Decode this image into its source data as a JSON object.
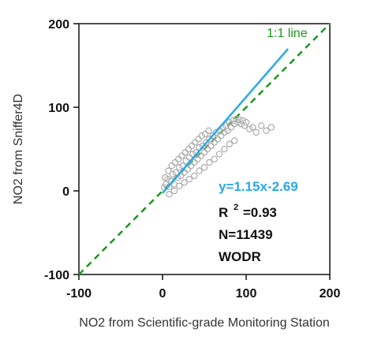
{
  "chart_data": {
    "type": "scatter",
    "title": "",
    "xlabel": "NO2 from Scientific-grade Monitoring Station",
    "ylabel": "NO2 from Sniffer4D",
    "xlim": [
      -100,
      200
    ],
    "ylim": [
      -100,
      200
    ],
    "x_ticks": [
      "-100",
      "0",
      "100",
      "200"
    ],
    "y_ticks": [
      "-100",
      "0",
      "100",
      "200"
    ],
    "grid": false,
    "series": [
      {
        "kind": "scatter",
        "marker": "open-circle",
        "color": "#a6a6a6",
        "points": [
          [
            2,
            4
          ],
          [
            4,
            8
          ],
          [
            6,
            14
          ],
          [
            8,
            5
          ],
          [
            10,
            12
          ],
          [
            12,
            20
          ],
          [
            14,
            8
          ],
          [
            16,
            22
          ],
          [
            18,
            16
          ],
          [
            20,
            28
          ],
          [
            22,
            18
          ],
          [
            24,
            30
          ],
          [
            26,
            22
          ],
          [
            28,
            36
          ],
          [
            30,
            26
          ],
          [
            32,
            40
          ],
          [
            34,
            30
          ],
          [
            36,
            44
          ],
          [
            38,
            34
          ],
          [
            40,
            46
          ],
          [
            42,
            38
          ],
          [
            44,
            52
          ],
          [
            46,
            42
          ],
          [
            48,
            54
          ],
          [
            50,
            46
          ],
          [
            52,
            58
          ],
          [
            54,
            50
          ],
          [
            56,
            62
          ],
          [
            58,
            54
          ],
          [
            60,
            66
          ],
          [
            62,
            58
          ],
          [
            64,
            70
          ],
          [
            66,
            62
          ],
          [
            68,
            72
          ],
          [
            70,
            66
          ],
          [
            72,
            76
          ],
          [
            74,
            70
          ],
          [
            76,
            78
          ],
          [
            78,
            72
          ],
          [
            80,
            82
          ],
          [
            82,
            76
          ],
          [
            84,
            84
          ],
          [
            86,
            80
          ],
          [
            88,
            86
          ],
          [
            90,
            82
          ],
          [
            92,
            85
          ],
          [
            94,
            80
          ],
          [
            96,
            84
          ],
          [
            98,
            78
          ],
          [
            100,
            82
          ],
          [
            104,
            74
          ],
          [
            108,
            76
          ],
          [
            112,
            70
          ],
          [
            118,
            78
          ],
          [
            124,
            72
          ],
          [
            130,
            76
          ],
          [
            3,
            16
          ],
          [
            7,
            24
          ],
          [
            11,
            30
          ],
          [
            15,
            34
          ],
          [
            19,
            38
          ],
          [
            23,
            42
          ],
          [
            27,
            46
          ],
          [
            31,
            50
          ],
          [
            35,
            54
          ],
          [
            39,
            58
          ],
          [
            43,
            62
          ],
          [
            47,
            66
          ],
          [
            51,
            68
          ],
          [
            55,
            72
          ],
          [
            8,
            -4
          ],
          [
            14,
            0
          ],
          [
            20,
            6
          ],
          [
            26,
            10
          ],
          [
            32,
            14
          ],
          [
            38,
            18
          ],
          [
            44,
            24
          ],
          [
            50,
            28
          ],
          [
            56,
            34
          ],
          [
            62,
            38
          ],
          [
            68,
            44
          ],
          [
            74,
            50
          ],
          [
            80,
            56
          ],
          [
            86,
            60
          ]
        ]
      },
      {
        "kind": "line",
        "name": "y=1.15x-2.69",
        "color": "#2aa9e8",
        "slope": 1.15,
        "intercept": -2.69,
        "x_range": [
          0,
          150
        ]
      },
      {
        "kind": "line",
        "name": "1:1 line",
        "color": "#1a9a1a",
        "dashed": true,
        "slope": 1,
        "intercept": 0,
        "x_range": [
          -100,
          200
        ]
      }
    ],
    "annotations": {
      "one_to_one": "1:1 line",
      "equation": "y=1.15x-2.69",
      "r_main": "R",
      "r_sup": "2",
      "r_value": "=0.93",
      "n": "N=11439",
      "site": "WODR"
    }
  }
}
